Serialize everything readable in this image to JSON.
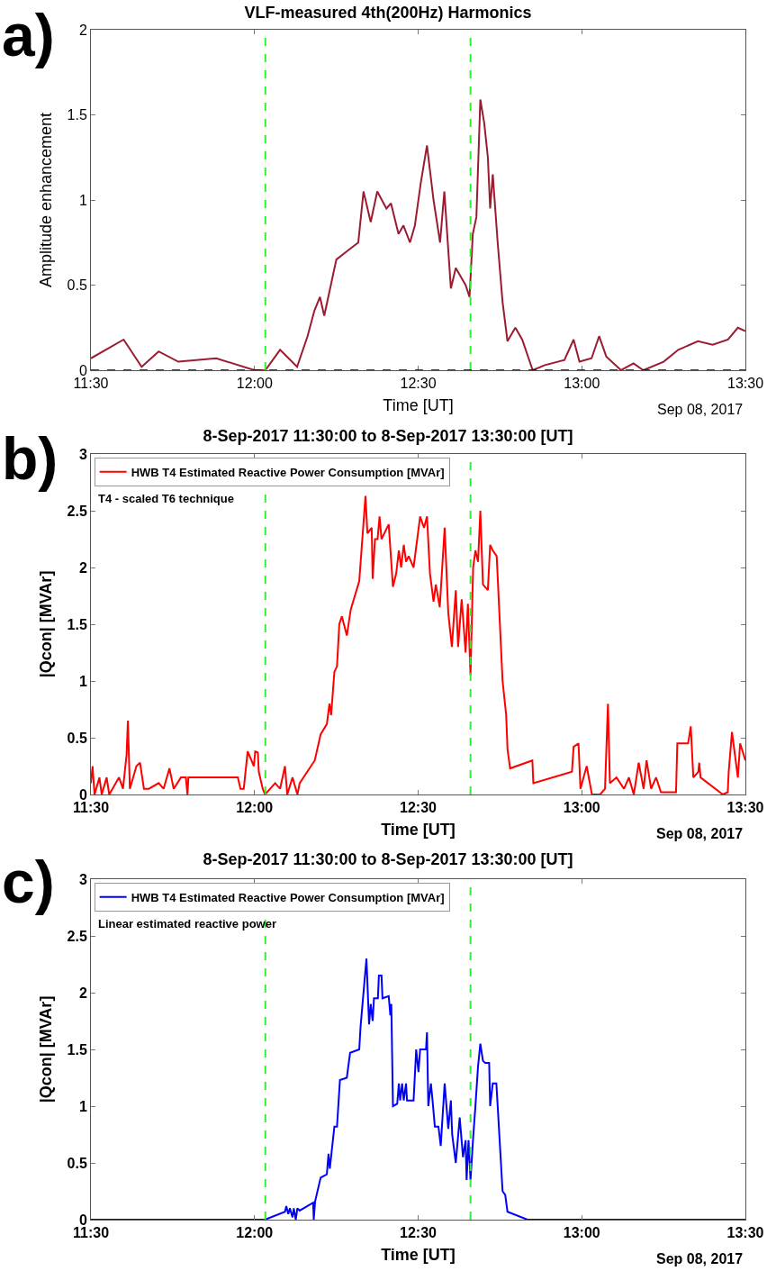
{
  "chart_data": [
    {
      "type": "line",
      "title": "VLF-measured 4th(200Hz) Harmonics",
      "xlabel": "Time [UT]",
      "ylabel": "Amplitude enhancement",
      "annotations": [
        "a)",
        "Sep 08, 2017"
      ],
      "legend": false,
      "xlim": [
        11.5,
        13.5
      ],
      "xticks": [
        {
          "value": 11.5,
          "label": "11:30"
        },
        {
          "value": 12,
          "label": "12:00"
        },
        {
          "value": 12.5,
          "label": "12:30"
        },
        {
          "value": 13,
          "label": "13:00"
        },
        {
          "value": 13.5,
          "label": "13:30"
        }
      ],
      "ylim": [
        0,
        2
      ],
      "yticks": [
        0,
        0.5,
        1,
        1.5,
        2
      ],
      "ref_lines": [
        {
          "axis": "x",
          "value": 12.033,
          "color": "#33ee33",
          "line_style": "dashed"
        },
        {
          "axis": "x",
          "value": 12.66,
          "color": "#33ee33",
          "line_style": "dashed"
        },
        {
          "axis": "y",
          "value": 0,
          "color": "#000000",
          "line_style": "dashed"
        }
      ],
      "series": [
        {
          "color": "#9b1b30",
          "x": [
            11.5,
            11.6,
            11.655,
            11.707,
            11.767,
            11.883,
            12.0,
            12.033,
            12.078,
            12.13,
            12.162,
            12.183,
            12.2,
            12.213,
            12.25,
            12.283,
            12.317,
            12.333,
            12.355,
            12.375,
            12.403,
            12.417,
            12.44,
            12.455,
            12.475,
            12.49,
            12.508,
            12.527,
            12.547,
            12.567,
            12.58,
            12.6,
            12.615,
            12.63,
            12.645,
            12.657,
            12.667,
            12.678,
            12.69,
            12.702,
            12.713,
            12.72,
            12.728,
            12.743,
            12.758,
            12.773,
            12.797,
            12.818,
            12.85,
            12.887,
            12.947,
            12.975,
            12.993,
            13.03,
            13.053,
            13.075,
            13.12,
            13.158,
            13.188,
            13.25,
            13.295,
            13.355,
            13.4,
            13.447,
            13.477,
            13.5
          ],
          "values": [
            0.07,
            0.18,
            0.02,
            0.11,
            0.05,
            0.07,
            0.0,
            0.0,
            0.12,
            0.02,
            0.2,
            0.35,
            0.43,
            0.32,
            0.65,
            0.7,
            0.75,
            1.05,
            0.87,
            1.05,
            0.95,
            0.98,
            0.8,
            0.85,
            0.75,
            0.85,
            1.1,
            1.32,
            1.0,
            0.75,
            1.05,
            0.48,
            0.6,
            0.55,
            0.5,
            0.43,
            0.8,
            0.9,
            1.59,
            1.45,
            1.25,
            0.95,
            1.15,
            0.75,
            0.4,
            0.17,
            0.25,
            0.18,
            0.0,
            0.03,
            0.06,
            0.18,
            0.05,
            0.07,
            0.2,
            0.08,
            0.0,
            0.04,
            0.0,
            0.05,
            0.12,
            0.17,
            0.15,
            0.18,
            0.25,
            0.23
          ]
        }
      ]
    },
    {
      "type": "line",
      "title": "8-Sep-2017 11:30:00 to 8-Sep-2017 13:30:00 [UT]",
      "xlabel": "Time [UT]",
      "ylabel": "|Qcon| [MVAr]",
      "annotations": [
        "b)",
        "Sep 08, 2017",
        "T4 - scaled T6 technique"
      ],
      "legend": "top left",
      "xlim": [
        11.5,
        13.5
      ],
      "xticks": [
        {
          "value": 11.5,
          "label": "11:30"
        },
        {
          "value": 12,
          "label": "12:00"
        },
        {
          "value": 12.5,
          "label": "12:30"
        },
        {
          "value": 13,
          "label": "13:00"
        },
        {
          "value": 13.5,
          "label": "13:30"
        }
      ],
      "ylim": [
        0,
        3
      ],
      "yticks": [
        0,
        0.5,
        1,
        1.5,
        2,
        2.5,
        3
      ],
      "ref_lines": [
        {
          "axis": "x",
          "value": 12.033,
          "color": "#33ee33",
          "line_style": "dashed"
        },
        {
          "axis": "x",
          "value": 12.66,
          "color": "#33ee33",
          "line_style": "dashed"
        }
      ],
      "series": [
        {
          "name": "HWB T4 Estimated Reactive Power Consumption [MVAr]",
          "color": "#ff0000",
          "x": [
            11.5,
            11.505,
            11.511,
            11.526,
            11.533,
            11.548,
            11.556,
            11.586,
            11.598,
            11.609,
            11.613,
            11.619,
            11.639,
            11.65,
            11.662,
            11.677,
            11.707,
            11.722,
            11.74,
            11.753,
            11.775,
            11.79,
            11.795,
            11.798,
            11.866,
            11.911,
            11.949,
            11.957,
            11.967,
            11.979,
            11.998,
            12.002,
            12.01,
            12.013,
            12.025,
            12.032,
            12.063,
            12.078,
            12.093,
            12.1,
            12.116,
            12.131,
            12.138,
            12.184,
            12.202,
            12.221,
            12.229,
            12.234,
            12.244,
            12.252,
            12.259,
            12.267,
            12.282,
            12.294,
            12.32,
            12.339,
            12.345,
            12.358,
            12.361,
            12.368,
            12.376,
            12.382,
            12.388,
            12.41,
            12.423,
            12.433,
            12.441,
            12.448,
            12.456,
            12.463,
            12.471,
            12.486,
            12.506,
            12.518,
            12.527,
            12.536,
            12.547,
            12.554,
            12.566,
            12.581,
            12.592,
            12.603,
            12.615,
            12.622,
            12.633,
            12.645,
            12.652,
            12.66,
            12.668,
            12.675,
            12.683,
            12.69,
            12.698,
            12.713,
            12.72,
            12.728,
            12.74,
            12.758,
            12.769,
            12.773,
            12.781,
            12.849,
            12.852,
            12.97,
            12.975,
            12.99,
            12.996,
            13.015,
            13.031,
            13.056,
            13.071,
            13.08,
            13.086,
            13.106,
            13.129,
            13.144,
            13.159,
            13.174,
            13.189,
            13.198,
            13.212,
            13.227,
            13.242,
            13.288,
            13.292,
            13.325,
            13.333,
            13.341,
            13.356,
            13.359,
            13.363,
            13.431,
            13.446,
            13.449,
            13.459,
            13.477,
            13.484,
            13.5
          ],
          "values": [
            0.1,
            0.25,
            0.0,
            0.15,
            0.0,
            0.15,
            0.0,
            0.15,
            0.05,
            0.35,
            0.65,
            0.05,
            0.25,
            0.28,
            0.05,
            0.05,
            0.1,
            0.05,
            0.23,
            0.05,
            0.15,
            0.15,
            0.0,
            0.15,
            0.15,
            0.15,
            0.15,
            0.05,
            0.05,
            0.38,
            0.25,
            0.38,
            0.37,
            0.2,
            0.05,
            0.0,
            0.1,
            0.05,
            0.25,
            0.0,
            0.15,
            0.0,
            0.1,
            0.3,
            0.53,
            0.62,
            0.8,
            0.7,
            1.08,
            1.13,
            1.5,
            1.57,
            1.4,
            1.63,
            1.88,
            2.63,
            2.3,
            2.35,
            1.9,
            2.25,
            2.25,
            2.45,
            2.25,
            2.38,
            1.83,
            1.95,
            2.15,
            2.0,
            2.2,
            2.05,
            2.1,
            2.0,
            2.45,
            2.35,
            2.45,
            1.95,
            1.7,
            1.85,
            1.65,
            2.35,
            1.6,
            1.3,
            1.8,
            1.3,
            1.72,
            1.25,
            1.68,
            1.05,
            2.0,
            2.15,
            2.05,
            2.5,
            1.85,
            1.8,
            2.2,
            2.15,
            2.1,
            1.0,
            0.7,
            0.4,
            0.23,
            0.3,
            0.1,
            0.2,
            0.42,
            0.45,
            0.05,
            0.25,
            0.0,
            0.0,
            0.05,
            0.8,
            0.1,
            0.15,
            0.05,
            0.15,
            0.0,
            0.28,
            0.05,
            0.3,
            0.05,
            0.15,
            0.02,
            0.02,
            0.45,
            0.45,
            0.6,
            0.15,
            0.2,
            0.28,
            0.15,
            0.0,
            0.02,
            0.2,
            0.55,
            0.15,
            0.45,
            0.3
          ]
        }
      ]
    },
    {
      "type": "line",
      "title": "8-Sep-2017 11:30:00 to 8-Sep-2017 13:30:00 [UT]",
      "xlabel": "Time [UT]",
      "ylabel": "|Qcon| [MVAr]",
      "annotations": [
        "c)",
        "Sep 08, 2017",
        "Linear estimated reactive power"
      ],
      "legend": "top left",
      "xlim": [
        11.5,
        13.5
      ],
      "xticks": [
        {
          "value": 11.5,
          "label": "11:30"
        },
        {
          "value": 12,
          "label": "12:00"
        },
        {
          "value": 12.5,
          "label": "12:30"
        },
        {
          "value": 13,
          "label": "13:00"
        },
        {
          "value": 13.5,
          "label": "13:30"
        }
      ],
      "ylim": [
        0,
        3
      ],
      "yticks": [
        0,
        0.5,
        1,
        1.5,
        2,
        2.5,
        3
      ],
      "ref_lines": [
        {
          "axis": "x",
          "value": 12.033,
          "color": "#33ee33",
          "line_style": "dashed"
        },
        {
          "axis": "x",
          "value": 12.66,
          "color": "#33ee33",
          "line_style": "dashed"
        }
      ],
      "series": [
        {
          "name": "HWB T4 Estimated Reactive Power Consumption [MVAr]",
          "color": "#0000ff",
          "x": [
            11.5,
            12.032,
            12.093,
            12.097,
            12.103,
            12.108,
            12.116,
            12.12,
            12.126,
            12.131,
            12.138,
            12.179,
            12.181,
            12.185,
            12.202,
            12.221,
            12.226,
            12.23,
            12.244,
            12.252,
            12.261,
            12.282,
            12.292,
            12.32,
            12.324,
            12.342,
            12.35,
            12.355,
            12.361,
            12.365,
            12.377,
            12.38,
            12.388,
            12.391,
            12.41,
            12.415,
            12.418,
            12.423,
            12.436,
            12.441,
            12.445,
            12.451,
            12.456,
            12.463,
            12.466,
            12.486,
            12.494,
            12.501,
            12.506,
            12.524,
            12.527,
            12.531,
            12.539,
            12.544,
            12.551,
            12.562,
            12.569,
            12.581,
            12.592,
            12.6,
            12.604,
            12.615,
            12.627,
            12.637,
            12.645,
            12.648,
            12.654,
            12.66,
            12.668,
            12.675,
            12.683,
            12.69,
            12.698,
            12.705,
            12.717,
            12.72,
            12.728,
            12.739,
            12.758,
            12.766,
            12.773,
            12.834,
            13.5
          ],
          "values": [
            0,
            0,
            0.07,
            0.12,
            0.05,
            0.1,
            0.02,
            0.1,
            0.0,
            0.1,
            0.08,
            0.15,
            0.0,
            0.16,
            0.37,
            0.4,
            0.58,
            0.45,
            0.82,
            0.82,
            1.23,
            1.25,
            1.47,
            1.5,
            1.7,
            2.3,
            1.72,
            1.9,
            1.75,
            1.95,
            1.95,
            2.15,
            2.15,
            1.95,
            1.97,
            1.8,
            1.9,
            1.0,
            1.02,
            1.2,
            1.05,
            1.2,
            1.05,
            1.2,
            1.05,
            1.05,
            1.5,
            1.3,
            1.5,
            1.5,
            1.65,
            1.0,
            1.2,
            1.05,
            0.82,
            0.82,
            0.65,
            1.2,
            0.8,
            1.05,
            0.75,
            0.5,
            0.9,
            0.55,
            0.7,
            0.35,
            0.7,
            0.35,
            0.72,
            1.0,
            1.35,
            1.55,
            1.4,
            1.38,
            1.38,
            1.0,
            1.2,
            1.2,
            0.25,
            0.22,
            0.07,
            0.0,
            0
          ]
        }
      ]
    }
  ]
}
